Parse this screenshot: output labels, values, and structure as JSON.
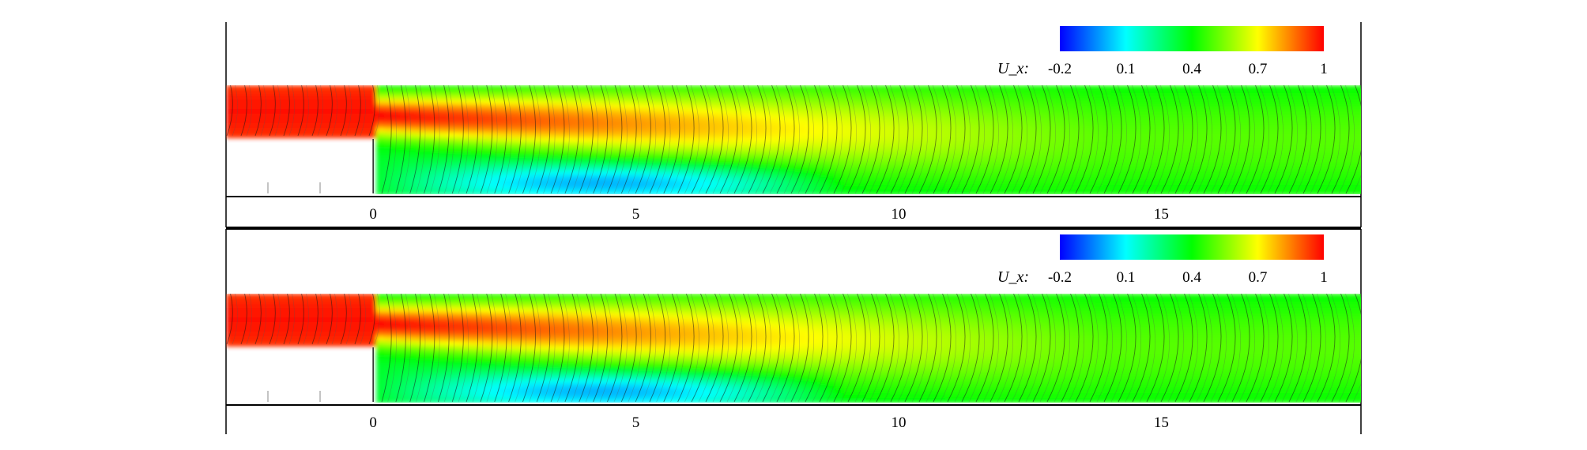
{
  "chart_data": [
    {
      "type": "heatmap",
      "title": "",
      "xlabel": "",
      "ylabel": "",
      "xlim": [
        -2.8,
        18.8
      ],
      "x_ticks": [
        "0",
        "5",
        "10",
        "15"
      ],
      "x_tick_values": [
        0,
        5,
        10,
        15
      ],
      "colorbar": {
        "label": "U_x:",
        "ticks": [
          "-0.2",
          "0.1",
          "0.4",
          "0.7",
          "1"
        ],
        "range": [
          -0.2,
          1
        ],
        "colors": [
          "#0000ff",
          "#00ffff",
          "#00ff00",
          "#ffff00",
          "#ff0000"
        ]
      },
      "vectors": true,
      "step": {
        "x": 0,
        "height": 1
      }
    },
    {
      "type": "heatmap",
      "title": "",
      "xlabel": "",
      "ylabel": "",
      "xlim": [
        -2.8,
        18.8
      ],
      "x_ticks": [
        "0",
        "5",
        "10",
        "15"
      ],
      "x_tick_values": [
        0,
        5,
        10,
        15
      ],
      "colorbar": {
        "label": "U_x:",
        "ticks": [
          "-0.2",
          "0.1",
          "0.4",
          "0.7",
          "1"
        ],
        "range": [
          -0.2,
          1
        ],
        "colors": [
          "#0000ff",
          "#00ffff",
          "#00ff00",
          "#ffff00",
          "#ff0000"
        ]
      },
      "vectors": true,
      "step": {
        "x": 0,
        "height": 1
      }
    }
  ]
}
